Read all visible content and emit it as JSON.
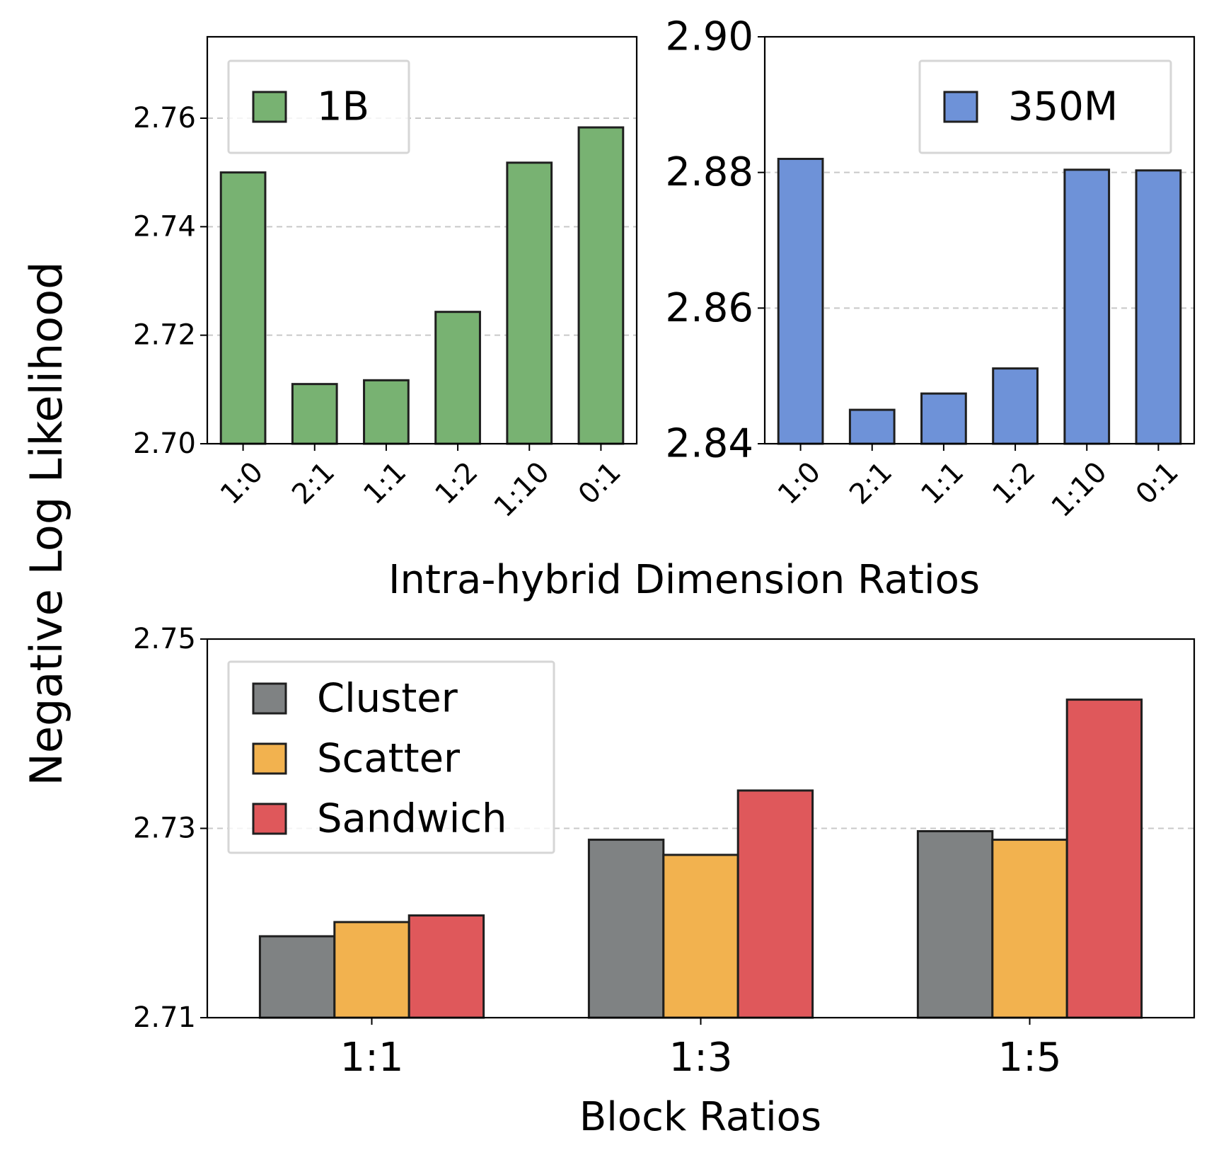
{
  "figure": {
    "ylabel": "Negative Log Likelihood",
    "colors": {
      "green": "#78b272",
      "blue": "#6e92d8",
      "gray": "#7f8283",
      "orange": "#f2b24f",
      "red": "#df585b",
      "grid": "#c8c8c8",
      "edge": "#1f1f1f"
    }
  },
  "chart_data": [
    {
      "id": "top-left",
      "type": "bar",
      "categories": [
        "1:0",
        "2:1",
        "1:1",
        "1:2",
        "1:10",
        "0:1"
      ],
      "series": [
        {
          "name": "1B",
          "color_key": "green",
          "values": [
            2.75,
            2.711,
            2.7117,
            2.7243,
            2.7518,
            2.7583
          ]
        }
      ],
      "ylim": [
        2.7,
        2.775
      ],
      "yticks": [
        "2.70",
        "2.72",
        "2.74",
        "2.76"
      ],
      "ytick_values": [
        2.7,
        2.72,
        2.74,
        2.76
      ],
      "gridlines": [
        2.72,
        2.74,
        2.76
      ],
      "legend": [
        "1B"
      ],
      "legend_position": "top-left",
      "xlabel": "Intra-hybrid Dimension Ratios"
    },
    {
      "id": "top-right",
      "type": "bar",
      "categories": [
        "1:0",
        "2:1",
        "1:1",
        "1:2",
        "1:10",
        "0:1"
      ],
      "series": [
        {
          "name": "350M",
          "color_key": "blue",
          "values": [
            2.882,
            2.845,
            2.8474,
            2.8511,
            2.8804,
            2.8803
          ]
        }
      ],
      "ylim": [
        2.84,
        2.9
      ],
      "yticks": [
        "2.84",
        "2.86",
        "2.88",
        "2.90"
      ],
      "ytick_values": [
        2.84,
        2.86,
        2.88,
        2.9
      ],
      "gridlines": [
        2.86,
        2.88
      ],
      "legend": [
        "350M"
      ],
      "legend_position": "top-right",
      "xlabel": "Intra-hybrid Dimension Ratios"
    },
    {
      "id": "bottom",
      "type": "bar",
      "categories": [
        "1:1",
        "1:3",
        "1:5"
      ],
      "series": [
        {
          "name": "Cluster",
          "color_key": "gray",
          "values": [
            2.7186,
            2.7288,
            2.7297
          ]
        },
        {
          "name": "Scatter",
          "color_key": "orange",
          "values": [
            2.7201,
            2.7272,
            2.7288
          ]
        },
        {
          "name": "Sandwich",
          "color_key": "red",
          "values": [
            2.7208,
            2.734,
            2.7436
          ]
        }
      ],
      "ylim": [
        2.71,
        2.75
      ],
      "yticks": [
        "2.71",
        "2.73",
        "2.75"
      ],
      "ytick_values": [
        2.71,
        2.73,
        2.75
      ],
      "gridlines": [
        2.73
      ],
      "legend": [
        "Cluster",
        "Scatter",
        "Sandwich"
      ],
      "legend_position": "top-left",
      "xlabel": "Block Ratios"
    }
  ]
}
